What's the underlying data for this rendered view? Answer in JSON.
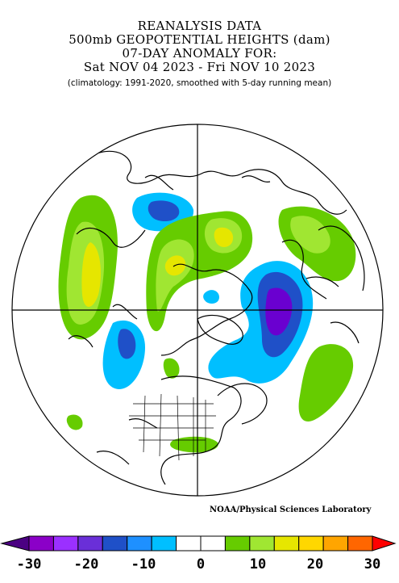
{
  "header": {
    "line1": "REANALYSIS DATA",
    "line2": "500mb GEOPOTENTIAL HEIGHTS (dam)",
    "line3": "07-DAY ANOMALY FOR:",
    "line4": "Sat NOV 04 2023 - Fri NOV 10 2023",
    "subtitle": "(climatology: 1991-2020, smoothed with 5-day running mean)"
  },
  "credit": "NOAA/Physical Sciences Laboratory",
  "colorbar": {
    "tick_labels": [
      "-30",
      "-20",
      "-10",
      "0",
      "10",
      "20",
      "30"
    ],
    "colors": [
      "#4b0082",
      "#8b00c8",
      "#9b30ff",
      "#6a2fd8",
      "#1f50c8",
      "#1e90ff",
      "#00bfff",
      "#ffffff",
      "#ffffff",
      "#66cc00",
      "#a0e632",
      "#e6e600",
      "#ffd700",
      "#ffa500",
      "#ff6600",
      "#ff0000"
    ]
  },
  "map": {
    "projection": "north-polar-stereographic",
    "anomaly_colors": {
      "neg_strong": "#6a00d0",
      "neg_mid": "#1f50c8",
      "neg_weak": "#1ec8ff",
      "pos_weak": "#66cc00",
      "pos_mid": "#a0e632",
      "pos_strong": "#e6e600"
    }
  }
}
